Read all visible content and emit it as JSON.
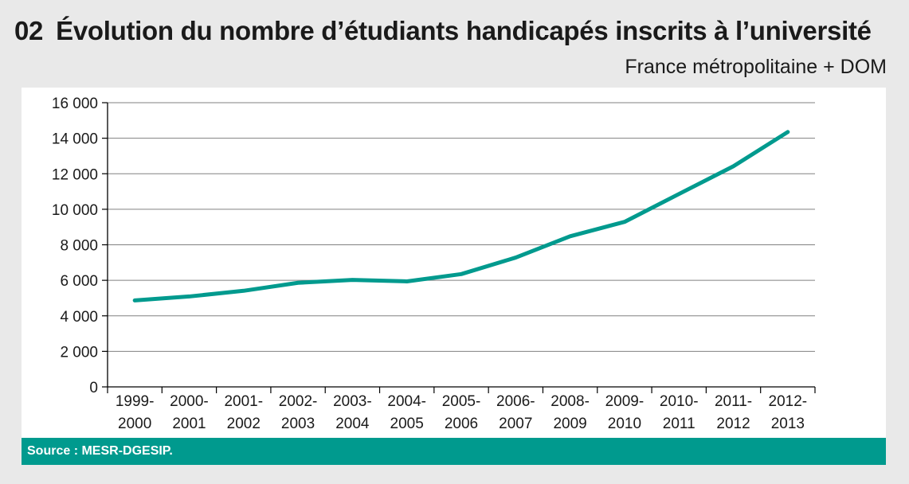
{
  "header": {
    "number": "02",
    "title": "Évolution du nombre d’étudiants handicapés inscrits à l’université",
    "subtitle": "France métropolitaine + DOM"
  },
  "source": "Source : MESR-DGESIP.",
  "colors": {
    "background": "#e9e9e9",
    "plot_background": "#ffffff",
    "line": "#009a8e",
    "source_bar": "#009a8e",
    "gridline": "#808080"
  },
  "chart_data": {
    "type": "line",
    "categories": [
      [
        "1999-",
        "2000"
      ],
      [
        "2000-",
        "2001"
      ],
      [
        "2001-",
        "2002"
      ],
      [
        "2002-",
        "2003"
      ],
      [
        "2003-",
        "2004"
      ],
      [
        "2004-",
        "2005"
      ],
      [
        "2005-",
        "2006"
      ],
      [
        "2006-",
        "2007"
      ],
      [
        "2008-",
        "2009"
      ],
      [
        "2009-",
        "2010"
      ],
      [
        "2010-",
        "2011"
      ],
      [
        "2011-",
        "2012"
      ],
      [
        "2012-",
        "2013"
      ]
    ],
    "series": [
      {
        "values": [
          4870,
          5090,
          5410,
          5860,
          6020,
          5940,
          6350,
          7280,
          8480,
          9290,
          10860,
          12420,
          14350
        ]
      }
    ],
    "yticks": [
      0,
      2000,
      4000,
      6000,
      8000,
      10000,
      12000,
      14000,
      16000
    ],
    "ytick_labels": [
      "0",
      "2 000",
      "4 000",
      "6 000",
      "8 000",
      "10 000",
      "12 000",
      "14 000",
      "16 000"
    ],
    "ylim": [
      0,
      16000
    ],
    "grid": true,
    "legend": "none",
    "xlabel": "",
    "ylabel": ""
  }
}
